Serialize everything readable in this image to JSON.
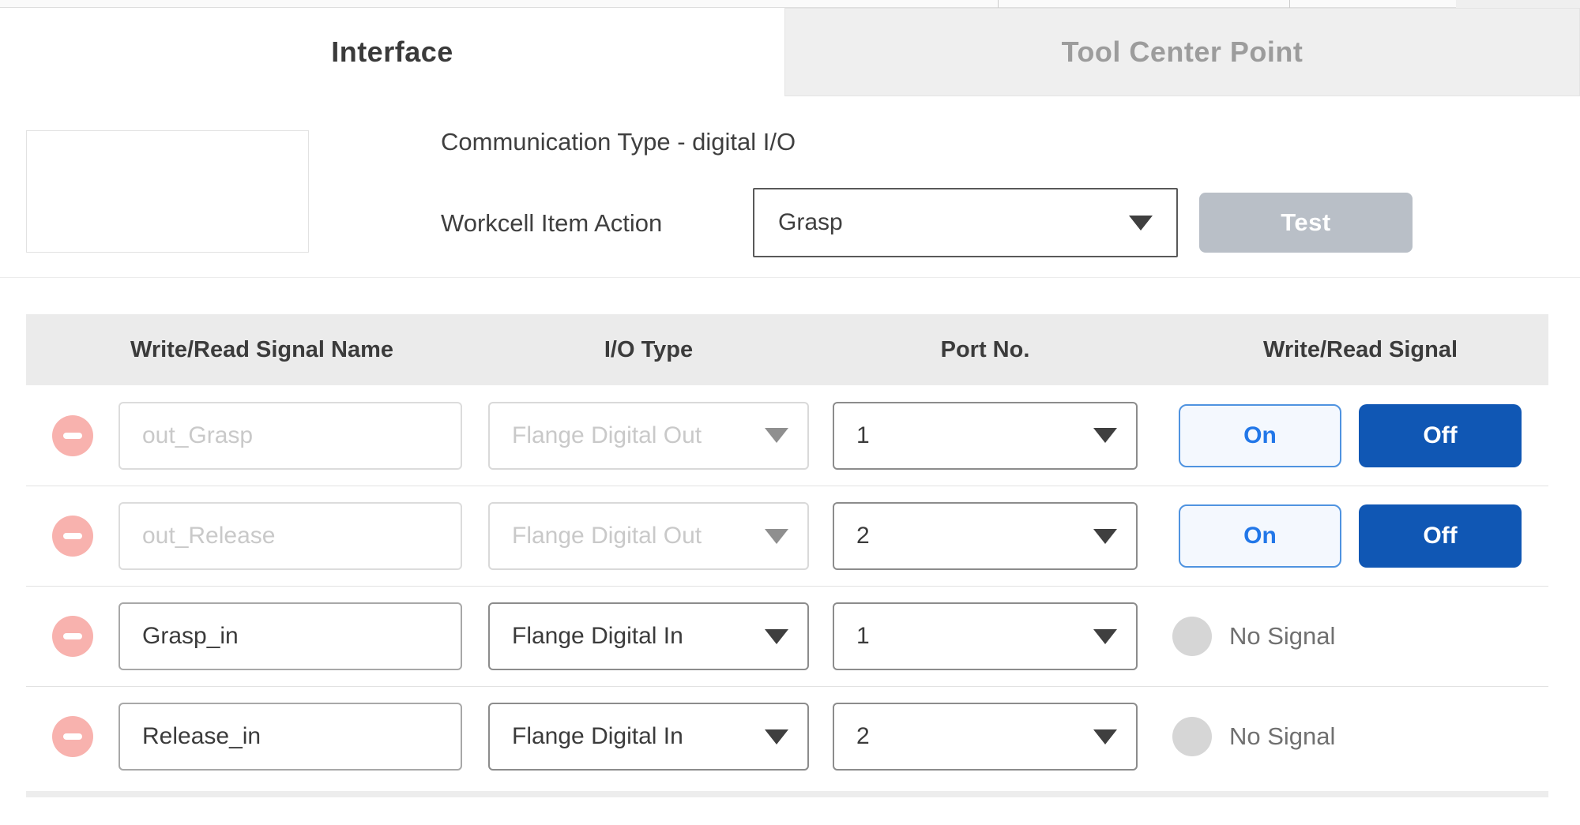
{
  "tabs": {
    "interface": "Interface",
    "tool_center_point": "Tool Center Point"
  },
  "info": {
    "communication_type": "Communication Type - digital I/O",
    "workcell_item_action_label": "Workcell Item Action",
    "action_value": "Grasp",
    "test_label": "Test"
  },
  "table": {
    "headers": [
      "Write/Read Signal Name",
      "I/O Type",
      "Port No.",
      "Write/Read Signal"
    ],
    "rows": [
      {
        "name": "out_Grasp",
        "io_type": "Flange Digital Out",
        "port": "1",
        "signal_kind": "write",
        "on_label": "On",
        "off_label": "Off",
        "disabled": true
      },
      {
        "name": "out_Release",
        "io_type": "Flange Digital Out",
        "port": "2",
        "signal_kind": "write",
        "on_label": "On",
        "off_label": "Off",
        "disabled": true
      },
      {
        "name": "Grasp_in",
        "io_type": "Flange Digital In",
        "port": "1",
        "signal_kind": "read",
        "no_signal_label": "No Signal",
        "disabled": false
      },
      {
        "name": "Release_in",
        "io_type": "Flange Digital In",
        "port": "2",
        "signal_kind": "read",
        "no_signal_label": "No Signal",
        "disabled": false
      }
    ]
  },
  "colors": {
    "off_button_blue": "#1057b4",
    "on_button_blue": "#2277e8",
    "on_button_bg": "#f4f8fe",
    "remove_icon_pink": "#f8b2ae",
    "header_band_gray": "#ebebeb",
    "inactive_tab_gray": "#efefef",
    "test_button_gray": "#b9bfc7",
    "no_signal_gray": "#d6d6d6"
  }
}
